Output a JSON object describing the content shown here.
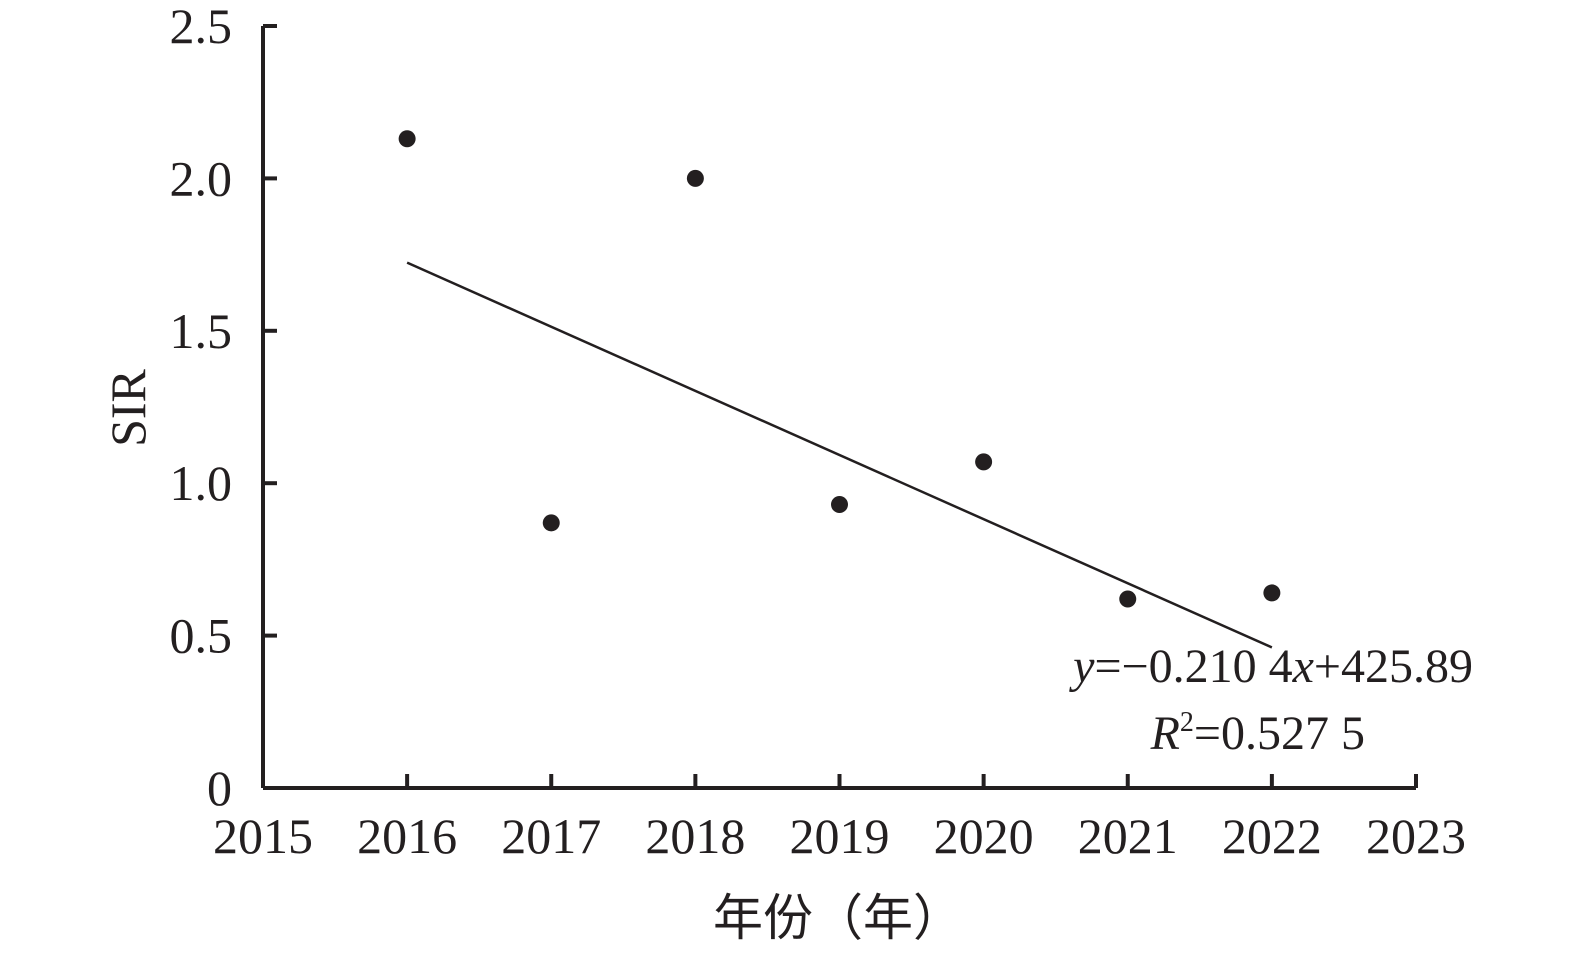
{
  "chart_data": {
    "type": "scatter",
    "title": "",
    "xlabel": "年份（年）",
    "ylabel": "SIR",
    "xlim": [
      2015,
      2023
    ],
    "ylim": [
      0,
      2.5
    ],
    "x_ticks": [
      "2015",
      "2016",
      "2017",
      "2018",
      "2019",
      "2020",
      "2021",
      "2022",
      "2023"
    ],
    "y_ticks": [
      "0",
      "0.5",
      "1.0",
      "1.5",
      "2.0",
      "2.5"
    ],
    "grid": false,
    "series": [
      {
        "x": [
          2016,
          2017,
          2018,
          2019,
          2020,
          2021,
          2022
        ],
        "y": [
          2.13,
          0.87,
          2.0,
          0.93,
          1.07,
          0.62,
          0.64
        ]
      }
    ],
    "trendline": {
      "slope": -0.2104,
      "intercept": 425.89,
      "x_range": [
        2016,
        2022
      ]
    },
    "annotations": {
      "equation_prefix": "y",
      "equation_mid": "=−0.210 4",
      "equation_x": "x",
      "equation_suffix": "+425.89",
      "r2_symbol": "R",
      "r2_exp": "2",
      "r2_value": "=0.527 5"
    },
    "colors": {
      "ink": "#231f20"
    }
  }
}
